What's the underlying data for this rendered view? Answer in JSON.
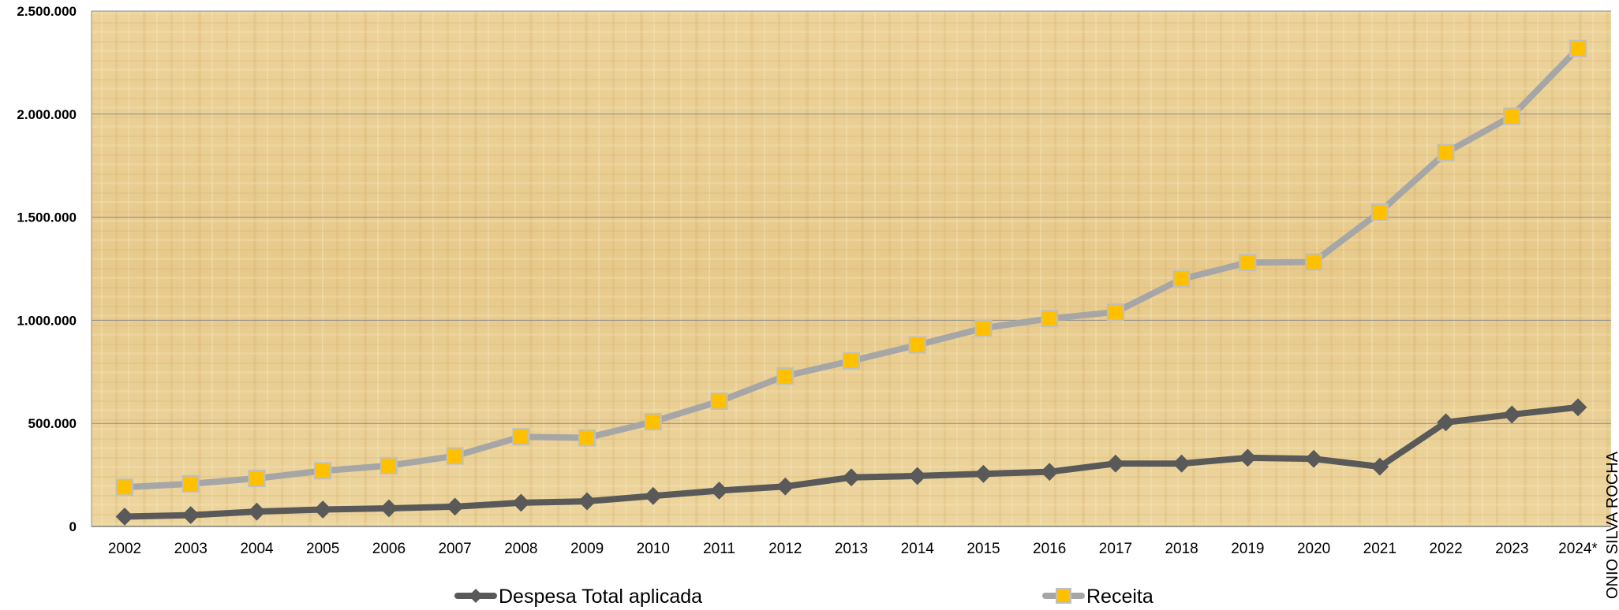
{
  "chart_data": {
    "type": "line",
    "title": "",
    "xlabel": "",
    "ylabel": "",
    "categories": [
      "2002",
      "2003",
      "2004",
      "2005",
      "2006",
      "2007",
      "2008",
      "2009",
      "2010",
      "2011",
      "2012",
      "2013",
      "2014",
      "2015",
      "2016",
      "2017",
      "2018",
      "2019",
      "2020",
      "2021",
      "2022",
      "2023",
      "2024*"
    ],
    "ylim": [
      0,
      2500000
    ],
    "y_ticks": [
      0,
      500000,
      1000000,
      1500000,
      2000000,
      2500000
    ],
    "y_tick_labels": [
      "0",
      "500.000",
      "1.000.000",
      "1.500.000",
      "2.000.000",
      "2.500.000"
    ],
    "grid": true,
    "legend_position": "bottom",
    "series": [
      {
        "name": "Despesa Total aplicada",
        "color": "#595959",
        "marker": "diamond",
        "values": [
          48000,
          55000,
          72000,
          82000,
          88000,
          96000,
          115000,
          122000,
          148000,
          174000,
          194000,
          238000,
          245000,
          255000,
          265000,
          305000,
          305000,
          333000,
          328000,
          290000,
          505000,
          543000,
          578000
        ]
      },
      {
        "name": "Receita",
        "color": "#A6A6A6",
        "marker_fill": "#FFC000",
        "marker": "square",
        "values": [
          190000,
          207000,
          233000,
          270000,
          295000,
          342000,
          435000,
          430000,
          508000,
          607000,
          730000,
          803000,
          880000,
          962000,
          1008000,
          1040000,
          1200000,
          1280000,
          1283000,
          1525000,
          1813000,
          1990000,
          2318000
        ]
      }
    ],
    "side_text": "ONIO SILVA ROCHA"
  }
}
